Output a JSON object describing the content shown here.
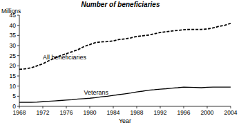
{
  "chart_data": {
    "type": "line",
    "title": "Number of beneficiaries",
    "y_label": "Millions",
    "x_label": "Year",
    "x": [
      1968,
      1969,
      1970,
      1971,
      1972,
      1973,
      1974,
      1975,
      1976,
      1977,
      1978,
      1979,
      1980,
      1981,
      1982,
      1983,
      1984,
      1985,
      1986,
      1987,
      1988,
      1989,
      1990,
      1991,
      1992,
      1993,
      1994,
      1995,
      1996,
      1997,
      1998,
      1999,
      2000,
      2001,
      2002,
      2003,
      2004
    ],
    "series": [
      {
        "name": "All beneficiaries",
        "color": "#000000",
        "line_style": "dashed",
        "values": [
          18.3,
          18.5,
          19,
          20,
          21,
          22.5,
          23.8,
          25,
          26,
          27,
          28,
          29.5,
          30.5,
          31.5,
          31.8,
          32,
          32.3,
          33,
          33.3,
          33.8,
          34.5,
          34.8,
          35.2,
          35.8,
          36.5,
          36.8,
          37.2,
          37.5,
          37.8,
          38,
          38,
          38,
          38.2,
          38.7,
          39.5,
          40,
          41
        ]
      },
      {
        "name": "Veterans",
        "color": "#000000",
        "line_style": "solid",
        "values": [
          2.0,
          2.0,
          2.0,
          2.1,
          2.3,
          2.5,
          2.7,
          2.9,
          3.1,
          3.3,
          3.6,
          3.8,
          4.0,
          4.3,
          4.7,
          5.0,
          5.4,
          5.8,
          6.2,
          6.6,
          7.1,
          7.5,
          8.0,
          8.2,
          8.5,
          8.7,
          9.0,
          9.2,
          9.5,
          9.4,
          9.3,
          9.2,
          9.4,
          9.5,
          9.5,
          9.5,
          9.5
        ]
      }
    ],
    "xlim": [
      1968,
      2004
    ],
    "xticks": [
      1968,
      1972,
      1976,
      1980,
      1984,
      1988,
      1992,
      1996,
      2000,
      2004
    ],
    "ylim": [
      0,
      45
    ],
    "yticks": [
      0,
      5,
      10,
      15,
      20,
      25,
      30,
      35,
      40,
      45
    ],
    "grid": false
  }
}
